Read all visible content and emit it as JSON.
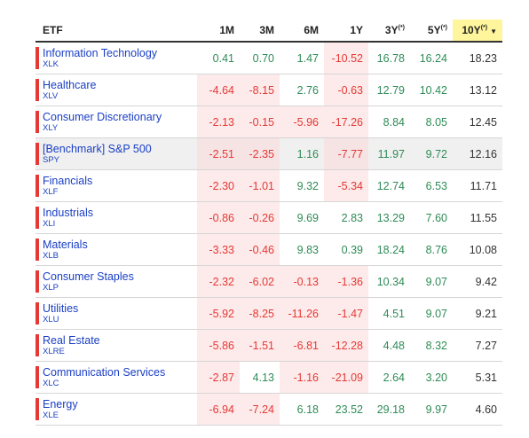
{
  "table": {
    "header": [
      {
        "label": "ETF"
      },
      {
        "label": "1M"
      },
      {
        "label": "3M"
      },
      {
        "label": "6M"
      },
      {
        "label": "1Y"
      },
      {
        "label": "3Y",
        "note": "(*)"
      },
      {
        "label": "5Y",
        "note": "(*)"
      },
      {
        "label": "10Y",
        "note": "(*)",
        "sorted": true
      }
    ],
    "rows": [
      {
        "name": "Information Technology",
        "ticker": "XLK",
        "values": [
          "0.41",
          "0.70",
          "1.47",
          "-10.52",
          "16.78",
          "16.24",
          "18.23"
        ]
      },
      {
        "name": "Healthcare",
        "ticker": "XLV",
        "values": [
          "-4.64",
          "-8.15",
          "2.76",
          "-0.63",
          "12.79",
          "10.42",
          "13.12"
        ]
      },
      {
        "name": "Consumer Discretionary",
        "ticker": "XLY",
        "values": [
          "-2.13",
          "-0.15",
          "-5.96",
          "-17.26",
          "8.84",
          "8.05",
          "12.45"
        ]
      },
      {
        "name": "[Benchmark] S&P 500",
        "ticker": "SPY",
        "benchmark": true,
        "values": [
          "-2.51",
          "-2.35",
          "1.16",
          "-7.77",
          "11.97",
          "9.72",
          "12.16"
        ]
      },
      {
        "name": "Financials",
        "ticker": "XLF",
        "values": [
          "-2.30",
          "-1.01",
          "9.32",
          "-5.34",
          "12.74",
          "6.53",
          "11.71"
        ]
      },
      {
        "name": "Industrials",
        "ticker": "XLI",
        "values": [
          "-0.86",
          "-0.26",
          "9.69",
          "2.83",
          "13.29",
          "7.60",
          "11.55"
        ]
      },
      {
        "name": "Materials",
        "ticker": "XLB",
        "values": [
          "-3.33",
          "-0.46",
          "9.83",
          "0.39",
          "18.24",
          "8.76",
          "10.08"
        ]
      },
      {
        "name": "Consumer Staples",
        "ticker": "XLP",
        "values": [
          "-2.32",
          "-6.02",
          "-0.13",
          "-1.36",
          "10.34",
          "9.07",
          "9.42"
        ]
      },
      {
        "name": "Utilities",
        "ticker": "XLU",
        "values": [
          "-5.92",
          "-8.25",
          "-11.26",
          "-1.47",
          "4.51",
          "9.07",
          "9.21"
        ]
      },
      {
        "name": "Real Estate",
        "ticker": "XLRE",
        "values": [
          "-5.86",
          "-1.51",
          "-6.81",
          "-12.28",
          "4.48",
          "8.32",
          "7.27"
        ]
      },
      {
        "name": "Communication Services",
        "ticker": "XLC",
        "values": [
          "-2.87",
          "4.13",
          "-1.16",
          "-21.09",
          "2.64",
          "3.20",
          "5.31"
        ]
      },
      {
        "name": "Energy",
        "ticker": "XLE",
        "values": [
          "-6.94",
          "-7.24",
          "6.18",
          "23.52",
          "29.18",
          "9.97",
          "4.60"
        ]
      }
    ]
  }
}
